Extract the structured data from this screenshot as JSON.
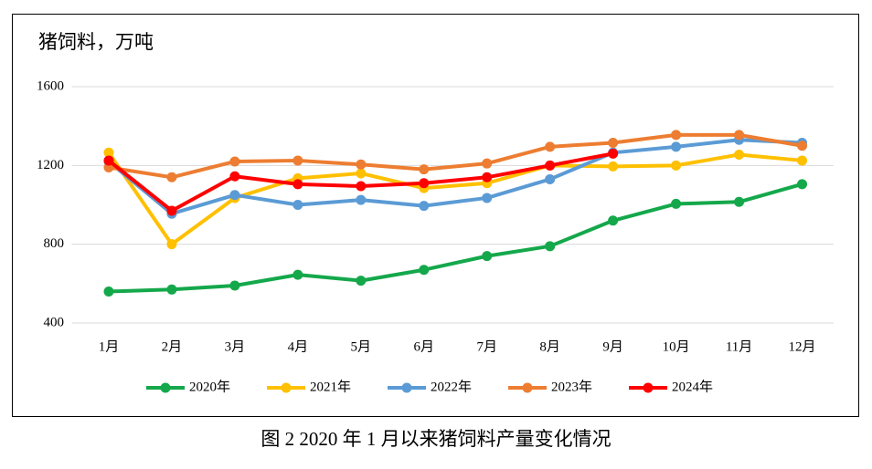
{
  "chart_data": {
    "type": "line",
    "title": "猪饲料，万吨",
    "caption": "图 2 2020 年 1 月以来猪饲料产量变化情况",
    "categories": [
      "1月",
      "2月",
      "3月",
      "4月",
      "5月",
      "6月",
      "7月",
      "8月",
      "9月",
      "10月",
      "11月",
      "12月"
    ],
    "ylim": [
      400,
      1600
    ],
    "yticks": [
      400,
      800,
      1200,
      1600
    ],
    "grid": true,
    "legend": "bottom",
    "series": [
      {
        "name": "2020年",
        "color": "#14a84b",
        "values": [
          560,
          570,
          590,
          645,
          615,
          670,
          740,
          790,
          920,
          1005,
          1015,
          1105
        ]
      },
      {
        "name": "2021年",
        "color": "#ffc000",
        "values": [
          1265,
          800,
          1035,
          1135,
          1160,
          1085,
          1110,
          1200,
          1195,
          1200,
          1255,
          1225
        ]
      },
      {
        "name": "2022年",
        "color": "#5b9bd5",
        "values": [
          1220,
          955,
          1050,
          1000,
          1025,
          995,
          1035,
          1130,
          1265,
          1295,
          1330,
          1315
        ]
      },
      {
        "name": "2023年",
        "color": "#ed7d31",
        "values": [
          1190,
          1140,
          1220,
          1225,
          1205,
          1180,
          1210,
          1295,
          1315,
          1355,
          1355,
          1300
        ]
      },
      {
        "name": "2024年",
        "color": "#ff0000",
        "values": [
          1225,
          970,
          1145,
          1105,
          1095,
          1110,
          1140,
          1200,
          1260,
          null,
          null,
          null
        ]
      }
    ]
  }
}
